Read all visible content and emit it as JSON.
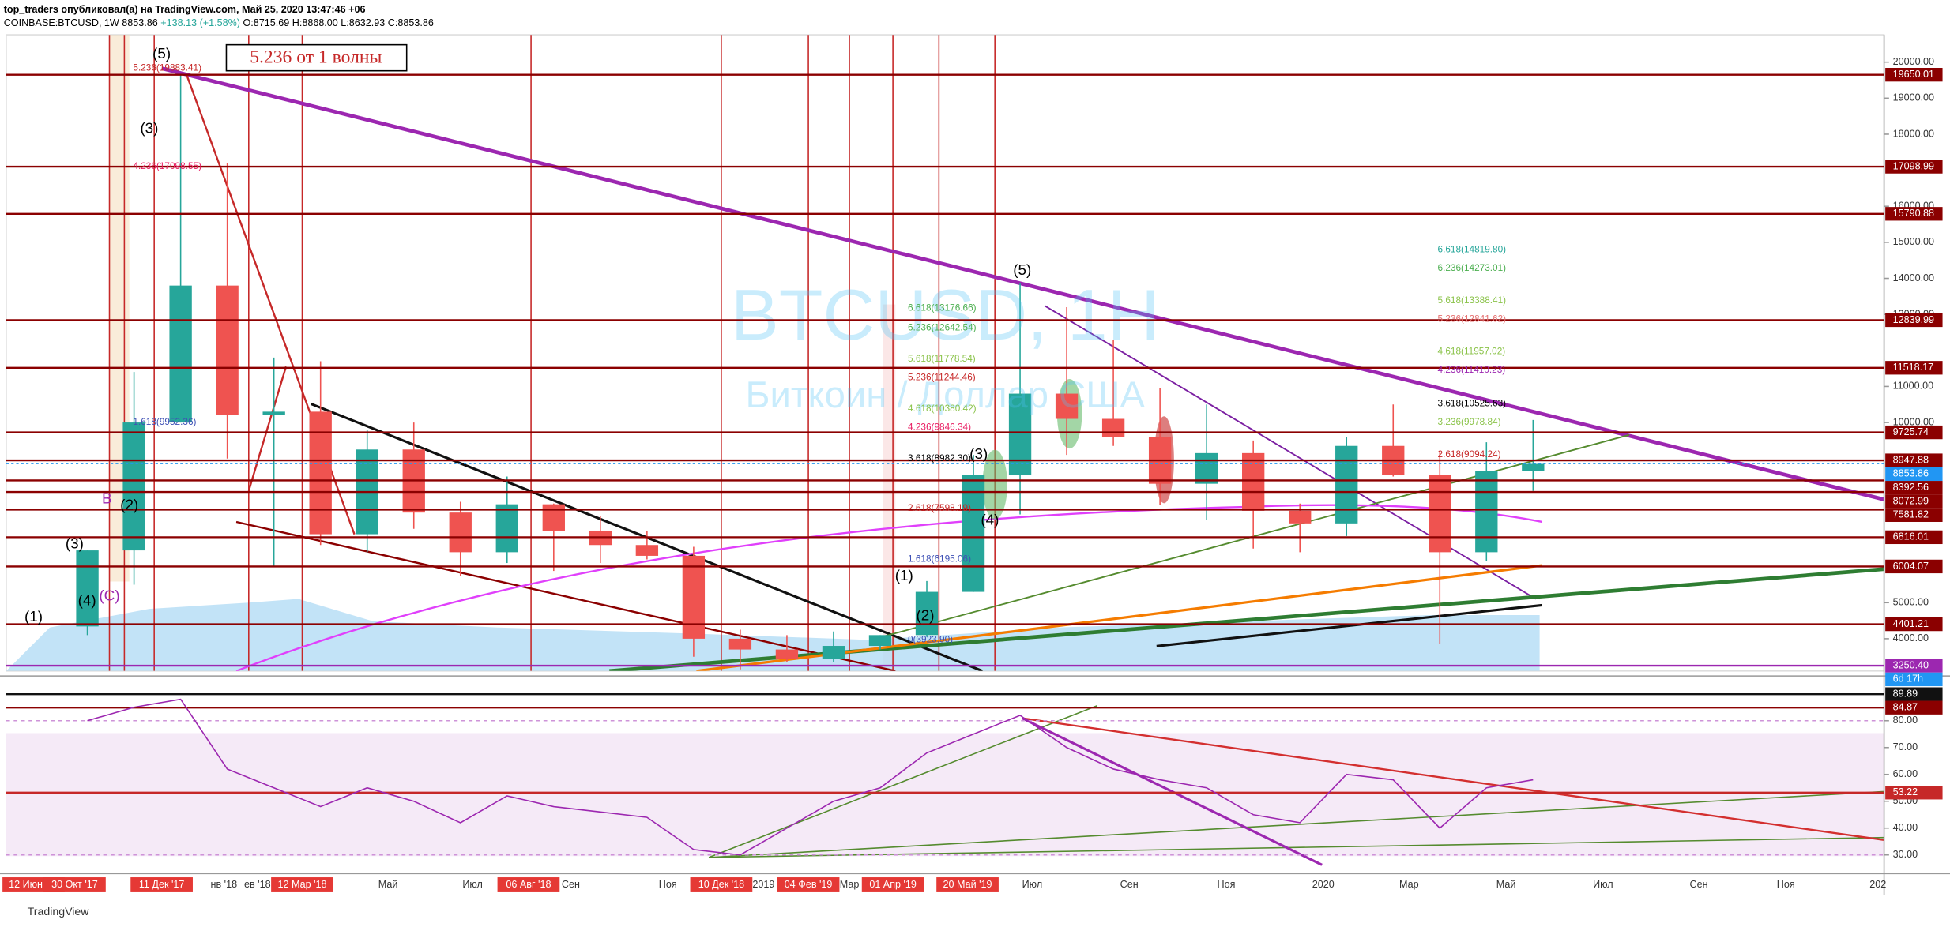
{
  "header": {
    "author_line": "top_traders опубликовал(а) на TradingView.com, Май 25, 2020 13:47:46 +06",
    "symbol": "COINBASE:BTCUSD, 1W",
    "last": "8853.86",
    "change": "+138.13 (+1.58%)",
    "open": "O:8715.69",
    "high": "H:8868.00",
    "low": "L:8632.93",
    "close": "C:8853.86"
  },
  "price_axis": {
    "ylim": [
      3000,
      21000
    ],
    "ticks": [
      {
        "value": 4000,
        "label": "4000.00"
      },
      {
        "value": 5000,
        "label": "5000.00"
      },
      {
        "value": 10000,
        "label": "10000.00"
      },
      {
        "value": 11000,
        "label": "11000.00"
      },
      {
        "value": 13000,
        "label": "13000.00"
      },
      {
        "value": 14000,
        "label": "14000.00"
      },
      {
        "value": 15000,
        "label": "15000.00"
      },
      {
        "value": 16000,
        "label": "16000.00"
      },
      {
        "value": 18000,
        "label": "18000.00"
      },
      {
        "value": 19000,
        "label": "19000.00"
      },
      {
        "value": 20000,
        "label": "20000.00"
      }
    ]
  },
  "price_levels": [
    {
      "value": 19650.01,
      "label": "19650.01",
      "color": "#8b0000"
    },
    {
      "value": 17098.99,
      "label": "17098.99",
      "color": "#8b0000"
    },
    {
      "value": 15790.88,
      "label": "15790.88",
      "color": "#8b0000"
    },
    {
      "value": 12839.99,
      "label": "12839.99",
      "color": "#8b0000"
    },
    {
      "value": 11518.17,
      "label": "11518.17",
      "color": "#8b0000"
    },
    {
      "value": 9725.74,
      "label": "9725.74",
      "color": "#8b0000"
    },
    {
      "value": 8947.88,
      "label": "8947.88",
      "color": "#8b0000"
    },
    {
      "value": 8853.86,
      "label": "8853.86",
      "color": "#2196f3"
    },
    {
      "value": 8392.56,
      "label": "8392.56",
      "color": "#8b0000"
    },
    {
      "value": 8072.99,
      "label": "8072.99",
      "color": "#8b0000"
    },
    {
      "value": 7581.82,
      "label": "7581.82",
      "color": "#8b0000"
    },
    {
      "value": 6816.01,
      "label": "6816.01",
      "color": "#8b0000"
    },
    {
      "value": 6004.07,
      "label": "6004.07",
      "color": "#8b0000"
    },
    {
      "value": 4401.21,
      "label": "4401.21",
      "color": "#8b0000"
    },
    {
      "value": 3250.4,
      "label": "3250.40",
      "color": "#9c27b0"
    }
  ],
  "countdown": "6d 17h",
  "candles": [
    [
      4340,
      6450,
      4100,
      6450
    ],
    [
      6450,
      11400,
      5500,
      10000
    ],
    [
      10000,
      19650,
      10000,
      13800
    ],
    [
      13800,
      17200,
      9000,
      10200
    ],
    [
      10200,
      11800,
      6000,
      10300
    ],
    [
      10300,
      11700,
      6600,
      6900
    ],
    [
      6900,
      9800,
      6400,
      9250
    ],
    [
      9250,
      10000,
      7050,
      7500
    ],
    [
      7500,
      7800,
      5750,
      6400
    ],
    [
      6400,
      8500,
      6100,
      7730
    ],
    [
      7730,
      7750,
      5880,
      7000
    ],
    [
      7000,
      7400,
      6100,
      6600
    ],
    [
      6600,
      7000,
      6200,
      6300
    ],
    [
      6300,
      6550,
      3500,
      4000
    ],
    [
      4000,
      4250,
      3150,
      3700
    ],
    [
      3700,
      4100,
      3350,
      3450
    ],
    [
      3450,
      4200,
      3350,
      3800
    ],
    [
      3800,
      4100,
      3700,
      4100
    ],
    [
      4100,
      5600,
      4050,
      5300
    ],
    [
      5300,
      9100,
      5300,
      8550
    ],
    [
      8550,
      13880,
      7450,
      10800
    ],
    [
      10800,
      13200,
      9100,
      10100
    ],
    [
      10100,
      12300,
      9350,
      9600
    ],
    [
      9600,
      10950,
      7700,
      8300
    ],
    [
      8300,
      10500,
      7300,
      9150
    ],
    [
      9150,
      9500,
      6500,
      7550
    ],
    [
      7550,
      7750,
      6400,
      7200
    ],
    [
      7200,
      9600,
      6850,
      9350
    ],
    [
      9350,
      10500,
      8500,
      8550
    ],
    [
      8550,
      9200,
      3850,
      6400
    ],
    [
      6400,
      9450,
      6150,
      8650
    ],
    [
      8650,
      10070,
      8100,
      8850
    ]
  ],
  "candle_colors": {
    "up": "#26a69a",
    "down": "#ef5350"
  },
  "rsi": {
    "values": [
      80,
      85,
      88,
      62,
      55,
      48,
      55,
      50,
      42,
      52,
      48,
      46,
      44,
      32,
      30,
      40,
      50,
      55,
      68,
      75,
      82,
      70,
      62,
      58,
      55,
      45,
      42,
      60,
      58,
      40,
      55,
      58
    ],
    "color": "#9c27b0",
    "ylim": [
      25,
      95
    ],
    "ticks": [
      {
        "value": 80,
        "label": "80.00"
      },
      {
        "value": 70,
        "label": "70.00"
      },
      {
        "value": 60,
        "label": "60.00"
      },
      {
        "value": 50,
        "label": "50.00"
      },
      {
        "value": 40,
        "label": "40.00"
      },
      {
        "value": 30,
        "label": "30.00"
      }
    ],
    "levels": [
      {
        "value": 89.89,
        "label": "89.89",
        "color": "#111"
      },
      {
        "value": 84.87,
        "label": "84.87",
        "color": "#8b0000"
      },
      {
        "value": 53.22,
        "label": "53.22",
        "color": "#c62828"
      }
    ]
  },
  "time_axis": [
    {
      "label": "12 Июн '17",
      "highlighted": true
    },
    {
      "label": "30 Окт '17",
      "highlighted": true
    },
    {
      "label": "11 Дек '17",
      "highlighted": true
    },
    {
      "label": "нв '18",
      "highlighted": false
    },
    {
      "label": "ев '18",
      "highlighted": false
    },
    {
      "label": "12 Мар '18",
      "highlighted": true
    },
    {
      "label": "Май",
      "highlighted": false
    },
    {
      "label": "Июл",
      "highlighted": false
    },
    {
      "label": "06 Авг '18",
      "highlighted": true
    },
    {
      "label": "Сен",
      "highlighted": false
    },
    {
      "label": "Ноя",
      "highlighted": false
    },
    {
      "label": "10 Дек '18",
      "highlighted": true
    },
    {
      "label": "2019",
      "highlighted": false
    },
    {
      "label": "04 Фев '19",
      "highlighted": true
    },
    {
      "label": "Мар",
      "highlighted": false
    },
    {
      "label": "01 Апр '19",
      "highlighted": true
    },
    {
      "label": "20 Май '19",
      "highlighted": true
    },
    {
      "label": "Июл",
      "highlighted": false
    },
    {
      "label": "Сен",
      "highlighted": false
    },
    {
      "label": "Ноя",
      "highlighted": false
    },
    {
      "label": "2020",
      "highlighted": false
    },
    {
      "label": "Мар",
      "highlighted": false
    },
    {
      "label": "Май",
      "highlighted": false
    },
    {
      "label": "Июл",
      "highlighted": false
    },
    {
      "label": "Сен",
      "highlighted": false
    },
    {
      "label": "Ноя",
      "highlighted": false
    },
    {
      "label": "202",
      "highlighted": false
    }
  ],
  "watermark": {
    "symbol": "BTCUSD, 1H",
    "description": "Биткоин / Доллар США"
  },
  "note_box": "5.236 от 1 волны",
  "annotations": [
    {
      "text": "(5)",
      "color": "#000"
    },
    {
      "text": "(3)",
      "color": "#000"
    },
    {
      "text": "(5)",
      "color": "#000"
    },
    {
      "text": "(3)",
      "color": "#000"
    },
    {
      "text": "(4)",
      "color": "#000"
    },
    {
      "text": "(1)",
      "color": "#000"
    },
    {
      "text": "(2)",
      "color": "#000"
    },
    {
      "text": "(2)",
      "color": "#000"
    },
    {
      "text": "(4)",
      "color": "#000"
    },
    {
      "text": "(3)",
      "color": "#000"
    },
    {
      "text": "(1)",
      "color": "#000"
    },
    {
      "text": "(C)",
      "color": "#9c27b0"
    },
    {
      "text": "B",
      "color": "#9c27b0"
    },
    {
      "text": "6.618(13176.66)",
      "color": "#4caf50"
    },
    {
      "text": "6.236(12642.54)",
      "color": "#4caf50"
    },
    {
      "text": "5.618(11778.54)",
      "color": "#8bc34a"
    },
    {
      "text": "5.236(11244.46)",
      "color": "#c62828"
    },
    {
      "text": "4.618(10380.42)",
      "color": "#8bc34a"
    },
    {
      "text": "4.236(9846.34)",
      "color": "#e91e63"
    },
    {
      "text": "3.618(8982.30)",
      "color": "#000"
    },
    {
      "text": "2.618(7598.19)",
      "color": "#c62828"
    },
    {
      "text": "1.618(6195.06)",
      "color": "#3f51b5"
    },
    {
      "text": "0(3923.90)",
      "color": "#3f51b5"
    },
    {
      "text": "6.618(14819.80)",
      "color": "#26a69a"
    },
    {
      "text": "6.236(14273.01)",
      "color": "#4caf50"
    },
    {
      "text": "5.618(13388.41)",
      "color": "#8bc34a"
    },
    {
      "text": "5.236(12841.62)",
      "color": "#e57373"
    },
    {
      "text": "4.618(11957.02)",
      "color": "#8bc34a"
    },
    {
      "text": "4.236(11410.23)",
      "color": "#9c27b0"
    },
    {
      "text": "3.618(10525.63)",
      "color": "#000"
    },
    {
      "text": "3.236(9978.84)",
      "color": "#8bc34a"
    },
    {
      "text": "2.618(9094.24)",
      "color": "#c62828"
    },
    {
      "text": "5.236(19883.41)",
      "color": "#c62828"
    },
    {
      "text": "4.236(17098.55)",
      "color": "#e91e63"
    },
    {
      "text": "1.618(9952.36)",
      "color": "#3f51b5"
    }
  ],
  "footer": "TradingView"
}
